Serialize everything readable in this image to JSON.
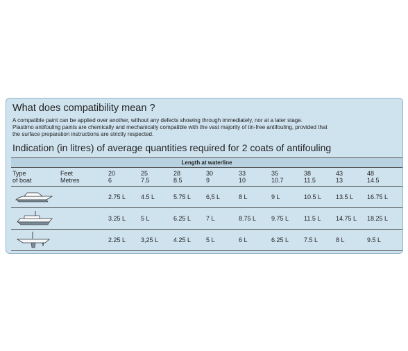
{
  "title": "What does compatibility mean ?",
  "paragraph_lines": [
    "A compatible paint can be applied over another, without any defects showing through immediately, nor at a later stage.",
    "Plastimo antifouling paints are chemically and mechanically compatible with the vast majority of tin-free antifouling, provided that",
    "the surface preparation instructions are strictly respected."
  ],
  "subtitle": "Indication (in litres) of average quantities required for 2 coats of antifouling",
  "table": {
    "length_header": "Length at waterline",
    "type_label": [
      "Type",
      "of boat"
    ],
    "unit_labels": [
      "Feet",
      "Metres"
    ],
    "feet": [
      "20",
      "25",
      "28",
      "30",
      "33",
      "35",
      "38",
      "43",
      "48"
    ],
    "metres": [
      "6",
      "7.5",
      "8.5",
      "9",
      "10",
      "10.7",
      "11.5",
      "13",
      "14.5"
    ],
    "rows": [
      {
        "boat": "motorboat-icon",
        "values": [
          "2.75 L",
          "4.5 L",
          "5.75 L",
          "6,5 L",
          "8 L",
          "9 L",
          "10.5 L",
          "13.5 L",
          "16.75 L"
        ]
      },
      {
        "boat": "motor-sailer-icon",
        "values": [
          "3.25 L",
          "5 L",
          "6.25 L",
          "7 L",
          "8.75 L",
          "9.75 L",
          "11.5 L",
          "14.75 L",
          "18.25 L"
        ]
      },
      {
        "boat": "sailboat-hull-icon",
        "values": [
          "2.25 L",
          "3,25 L",
          "4.25 L",
          "5 L",
          "6 L",
          "6.25 L",
          "7.5 L",
          "8 L",
          "9.5 L"
        ]
      }
    ]
  }
}
